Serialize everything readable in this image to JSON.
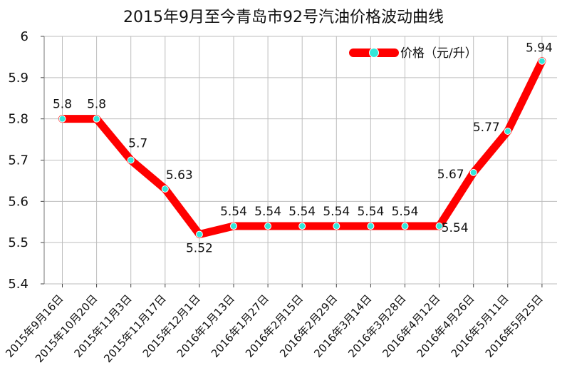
{
  "chart_data": {
    "type": "line",
    "title": "2015年9月至今青岛市92号汽油价格波动曲线",
    "xlabel": "",
    "ylabel": "",
    "ylim": [
      5.4,
      6.0
    ],
    "yticks": [
      "5.4",
      "5.5",
      "5.6",
      "5.7",
      "5.8",
      "5.9",
      "6"
    ],
    "categories": [
      "2015年9月16日",
      "2015年10月20日",
      "2015年11月3日",
      "2015年11月17日",
      "2015年12月1日",
      "2016年1月13日",
      "2016年1月27日",
      "2016年2月15日",
      "2016年2月29日",
      "2016年3月14日",
      "2016年3月28日",
      "2016年4月12日",
      "2016年4月26日",
      "2016年5月11日",
      "2016年5月25日"
    ],
    "series": [
      {
        "name": "价格（元/升）",
        "values": [
          5.8,
          5.8,
          5.7,
          5.63,
          5.52,
          5.54,
          5.54,
          5.54,
          5.54,
          5.54,
          5.54,
          5.54,
          5.67,
          5.77,
          5.94
        ],
        "value_labels": [
          "5.8",
          "5.8",
          "5.7",
          "5.63",
          "5.52",
          "5.54",
          "5.54",
          "5.54",
          "5.54",
          "5.54",
          "5.54",
          "5.54",
          "5.67",
          "5.77",
          "5.94"
        ]
      }
    ],
    "grid": true,
    "legend_position": "top-right",
    "colors": {
      "line": "#ff0000",
      "marker": "#33e6d9",
      "grid": "#bdbdbd",
      "text": "#111111"
    }
  }
}
